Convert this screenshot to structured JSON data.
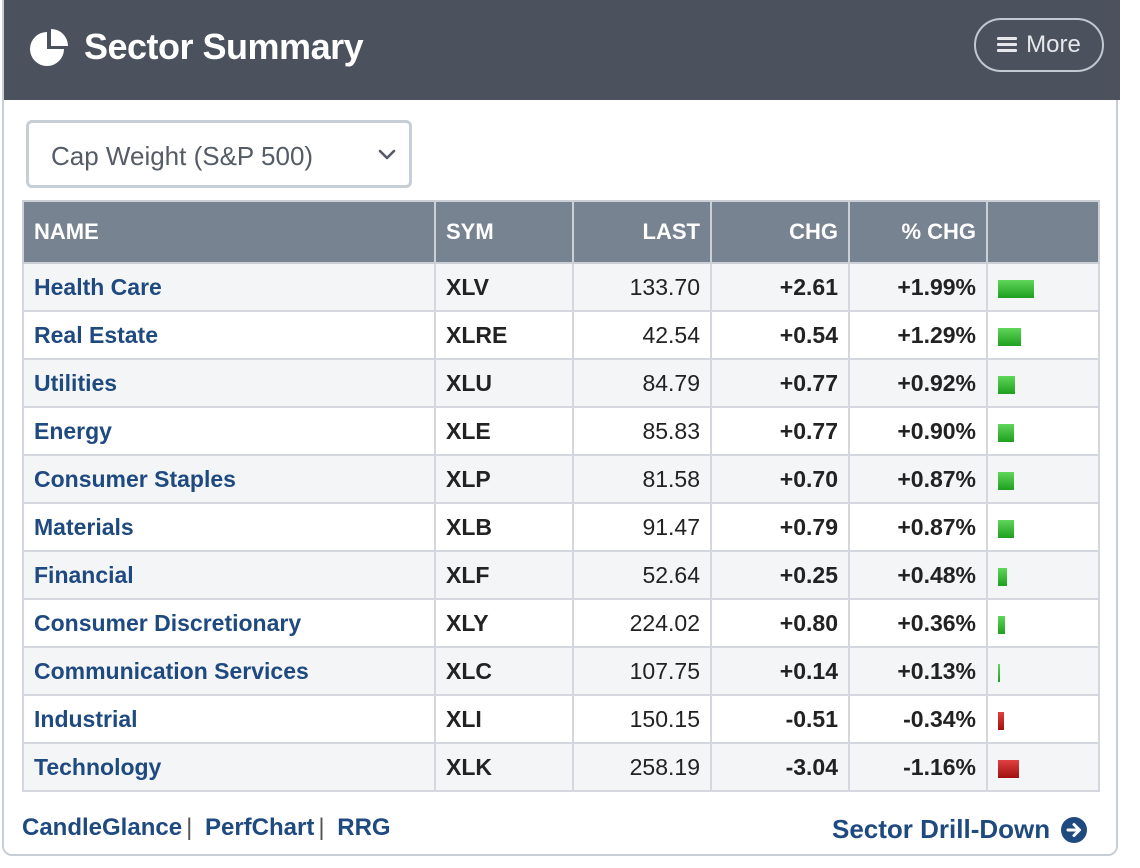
{
  "header": {
    "title": "Sector Summary",
    "icon": "pie-chart-icon",
    "more_label": "More"
  },
  "selector": {
    "value": "Cap Weight (S&P 500)"
  },
  "table": {
    "columns": [
      "NAME",
      "SYM",
      "LAST",
      "CHG",
      "% CHG",
      ""
    ],
    "rows": [
      {
        "name": "Health Care",
        "sym": "XLV",
        "last": "133.70",
        "chg": "+2.61",
        "pct": "+1.99%",
        "pct_value": 1.99
      },
      {
        "name": "Real Estate",
        "sym": "XLRE",
        "last": "42.54",
        "chg": "+0.54",
        "pct": "+1.29%",
        "pct_value": 1.29
      },
      {
        "name": "Utilities",
        "sym": "XLU",
        "last": "84.79",
        "chg": "+0.77",
        "pct": "+0.92%",
        "pct_value": 0.92
      },
      {
        "name": "Energy",
        "sym": "XLE",
        "last": "85.83",
        "chg": "+0.77",
        "pct": "+0.90%",
        "pct_value": 0.9
      },
      {
        "name": "Consumer Staples",
        "sym": "XLP",
        "last": "81.58",
        "chg": "+0.70",
        "pct": "+0.87%",
        "pct_value": 0.87
      },
      {
        "name": "Materials",
        "sym": "XLB",
        "last": "91.47",
        "chg": "+0.79",
        "pct": "+0.87%",
        "pct_value": 0.87
      },
      {
        "name": "Financial",
        "sym": "XLF",
        "last": "52.64",
        "chg": "+0.25",
        "pct": "+0.48%",
        "pct_value": 0.48
      },
      {
        "name": "Consumer Discretionary",
        "sym": "XLY",
        "last": "224.02",
        "chg": "+0.80",
        "pct": "+0.36%",
        "pct_value": 0.36
      },
      {
        "name": "Communication Services",
        "sym": "XLC",
        "last": "107.75",
        "chg": "+0.14",
        "pct": "+0.13%",
        "pct_value": 0.13
      },
      {
        "name": "Industrial",
        "sym": "XLI",
        "last": "150.15",
        "chg": "-0.51",
        "pct": "-0.34%",
        "pct_value": -0.34
      },
      {
        "name": "Technology",
        "sym": "XLK",
        "last": "258.19",
        "chg": "-3.04",
        "pct": "-1.16%",
        "pct_value": -1.16
      }
    ]
  },
  "footer": {
    "links": [
      "CandleGlance",
      "PerfChart",
      "RRG"
    ],
    "separator": "|",
    "drill_label": "Sector Drill-Down",
    "drill_icon": "arrow-right-circle-icon"
  },
  "colors": {
    "header_bg": "#4b525d",
    "table_header_bg": "#788392",
    "link": "#1f4a80",
    "positive": "#3d8b3d",
    "negative": "#c0282d"
  }
}
